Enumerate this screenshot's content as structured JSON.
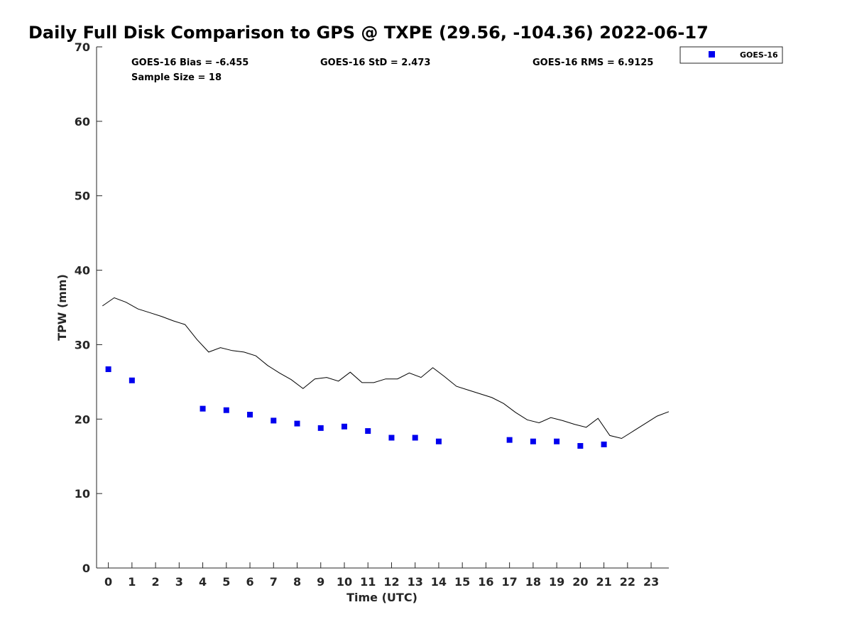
{
  "chart_data": {
    "type": "scatter",
    "title": "Daily Full Disk Comparison to GPS @ TXPE (29.56, -104.36) 2022-06-17",
    "xlabel": "Time (UTC)",
    "ylabel": "TPW (mm)",
    "xlim": [
      -0.5,
      23.75
    ],
    "ylim": [
      0,
      70
    ],
    "xticks": [
      0,
      1,
      2,
      3,
      4,
      5,
      6,
      7,
      8,
      9,
      10,
      11,
      12,
      13,
      14,
      15,
      16,
      17,
      18,
      19,
      20,
      21,
      22,
      23
    ],
    "yticks": [
      0,
      10,
      20,
      30,
      40,
      50,
      60,
      70
    ],
    "grid": false,
    "legend_position": "top-right outside",
    "stats": {
      "bias": "GOES-16 Bias = -6.455",
      "std": "GOES-16 StD = 2.473",
      "rms": "GOES-16 RMS = 6.9125",
      "sample": "Sample Size = 18"
    },
    "series": [
      {
        "name": "GOES-16",
        "kind": "scatter",
        "marker": "square",
        "color": "#0000ee",
        "x": [
          0,
          1,
          4,
          5,
          6,
          7,
          8,
          9,
          10,
          11,
          12,
          13,
          14,
          17,
          18,
          19,
          20,
          21
        ],
        "y": [
          26.7,
          25.2,
          21.4,
          21.2,
          20.6,
          19.8,
          19.4,
          18.8,
          19.0,
          18.4,
          17.5,
          17.5,
          17.0,
          17.2,
          17.0,
          17.0,
          16.4,
          16.6
        ]
      },
      {
        "kind": "line",
        "color": "#000000",
        "x": [
          -0.25,
          0.25,
          0.75,
          1.25,
          1.75,
          2.25,
          2.75,
          3.25,
          3.75,
          4.25,
          4.75,
          5.25,
          5.75,
          6.25,
          6.75,
          7.25,
          7.75,
          8.25,
          8.75,
          9.25,
          9.75,
          10.25,
          10.75,
          11.25,
          11.75,
          12.25,
          12.75,
          13.25,
          13.75,
          14.25,
          14.75,
          15.25,
          15.75,
          16.25,
          16.75,
          17.25,
          17.75,
          18.25,
          18.75,
          19.25,
          19.75,
          20.25,
          20.75,
          21.25,
          21.75,
          22.25,
          22.75,
          23.25,
          23.75
        ],
        "y": [
          35.2,
          36.3,
          35.7,
          34.8,
          34.3,
          33.8,
          33.2,
          32.7,
          30.7,
          29.0,
          29.6,
          29.2,
          29.0,
          28.5,
          27.2,
          26.2,
          25.3,
          24.1,
          25.4,
          25.6,
          25.1,
          26.3,
          24.9,
          24.9,
          25.4,
          25.4,
          26.2,
          25.6,
          26.9,
          25.7,
          24.4,
          23.9,
          23.4,
          22.9,
          22.1,
          20.9,
          19.9,
          19.5,
          20.2,
          19.8,
          19.3,
          18.9,
          20.1,
          17.8,
          17.4,
          18.4,
          19.4,
          20.4,
          21.0
        ]
      }
    ]
  }
}
